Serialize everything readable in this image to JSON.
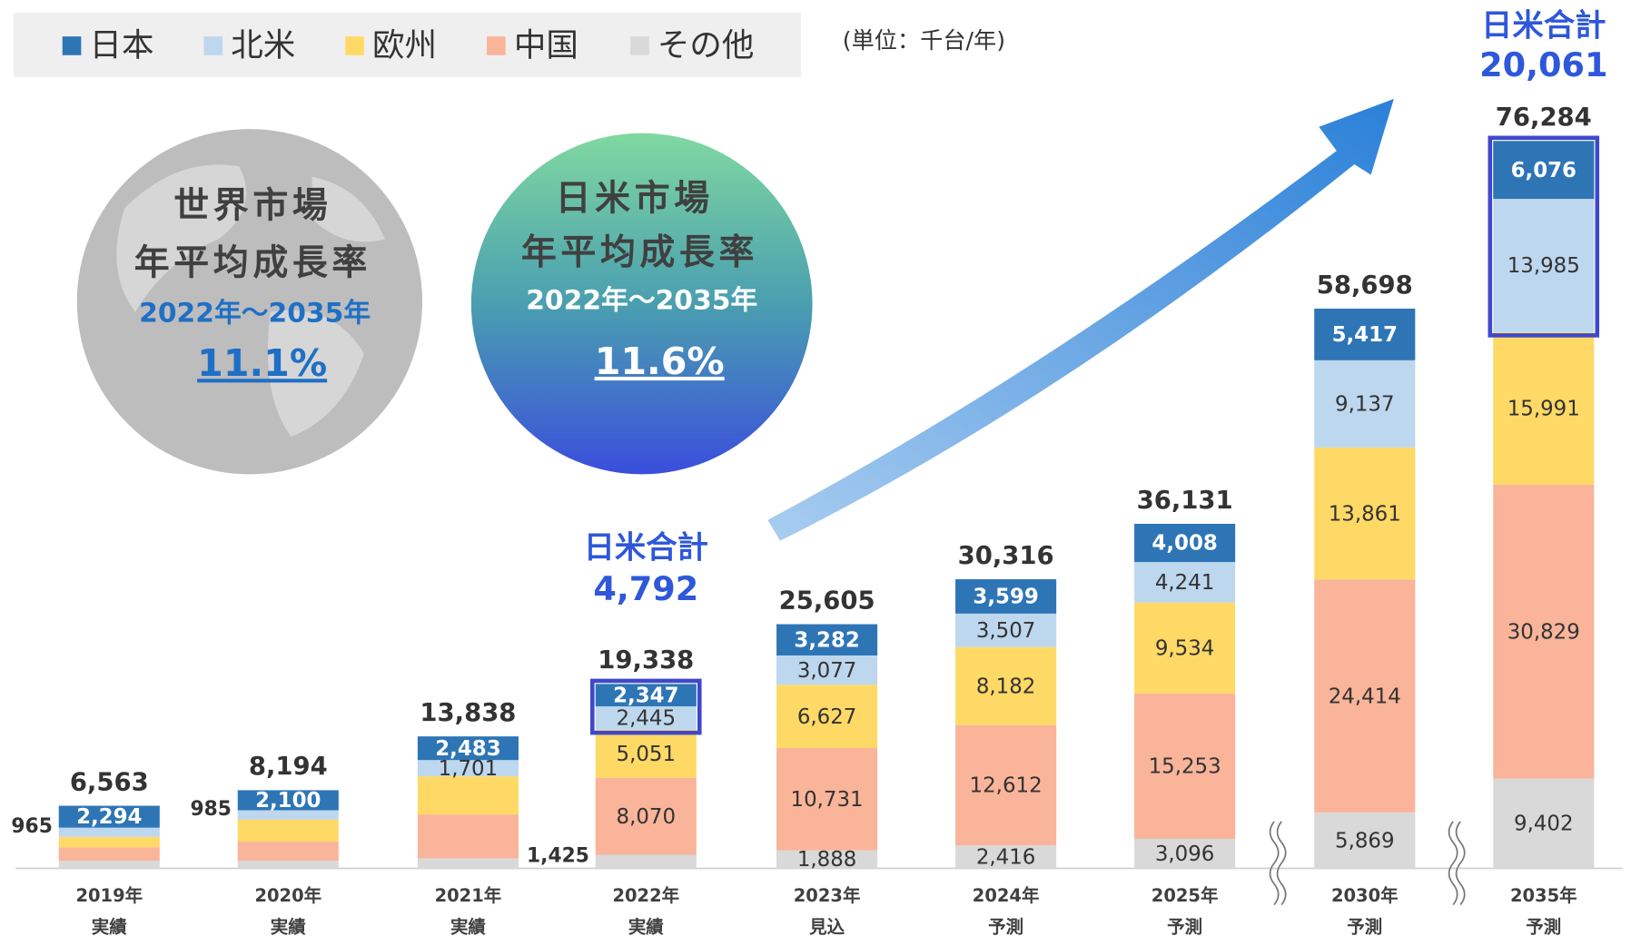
{
  "chart_data": {
    "type": "bar",
    "stacked": true,
    "categories": [
      "2019年",
      "2020年",
      "2021年",
      "2022年",
      "2023年",
      "2024年",
      "2025年",
      "2030年",
      "2035年"
    ],
    "category_notes": [
      "実績",
      "実績",
      "実績",
      "実績",
      "見込",
      "予測",
      "予測",
      "予測",
      "予測"
    ],
    "series": [
      {
        "name": "日本",
        "color": "#2e75b6",
        "values": [
          2294,
          2100,
          2483,
          2347,
          3282,
          3599,
          4008,
          5417,
          6076
        ],
        "value_labels": [
          "2,294",
          "2,100",
          "2,483",
          "2,347",
          "3,282",
          "3,599",
          "4,008",
          "5,417",
          "6,076"
        ]
      },
      {
        "name": "北米",
        "color": "#bdd7ee",
        "values": [
          965,
          985,
          1701,
          2445,
          3077,
          3507,
          4241,
          9137,
          13985
        ],
        "value_labels": [
          "965",
          "985",
          "1,701",
          "2,445",
          "3,077",
          "3,507",
          "4,241",
          "9,137",
          "13,985"
        ]
      },
      {
        "name": "欧州",
        "color": "#ffd966",
        "values": [
          1100,
          2300,
          4000,
          5051,
          6627,
          8182,
          9534,
          13861,
          15991
        ],
        "value_labels": [
          null,
          null,
          null,
          "5,051",
          "6,627",
          "8,182",
          "9,534",
          "13,861",
          "15,991"
        ]
      },
      {
        "name": "中国",
        "color": "#f9b49a",
        "values": [
          1400,
          2000,
          4600,
          8070,
          10731,
          12612,
          15253,
          24414,
          30829
        ],
        "value_labels": [
          null,
          null,
          null,
          "8,070",
          "10,731",
          "12,612",
          "15,253",
          "24,414",
          "30,829"
        ]
      },
      {
        "name": "その他",
        "color": "#d9d9d9",
        "values": [
          804,
          809,
          1054,
          1425,
          1888,
          2416,
          3096,
          5869,
          9402
        ],
        "value_labels": [
          null,
          null,
          null,
          "1,425",
          "1,888",
          "2,416",
          "3,096",
          "5,869",
          "9,402"
        ]
      }
    ],
    "totals": {
      "values": [
        6563,
        8194,
        13838,
        19338,
        25605,
        30316,
        36131,
        58698,
        76284
      ],
      "value_labels": [
        "6,563",
        "8,194",
        "13,838",
        "19,338",
        "25,605",
        "30,316",
        "36,131",
        "58,698",
        "76,284"
      ]
    },
    "japan_us_totals": [
      {
        "label": "日米合計",
        "value": 4792,
        "value_label": "4,792"
      },
      {
        "label": "日米合計",
        "value": 20061,
        "value_label": "20,061"
      }
    ],
    "unit": "(単位：千台/年)",
    "world": {
      "title": "世界市場",
      "subtitle": "年平均成長率",
      "period": "2022年～2035年",
      "rate": 11.1,
      "rate_label": "11.1%"
    },
    "japan_us": {
      "title": "日米市場",
      "subtitle": "年平均成長率",
      "period": "2022年～2035年",
      "rate": 11.6,
      "rate_label": "11.6%"
    },
    "legend": "top-left"
  }
}
